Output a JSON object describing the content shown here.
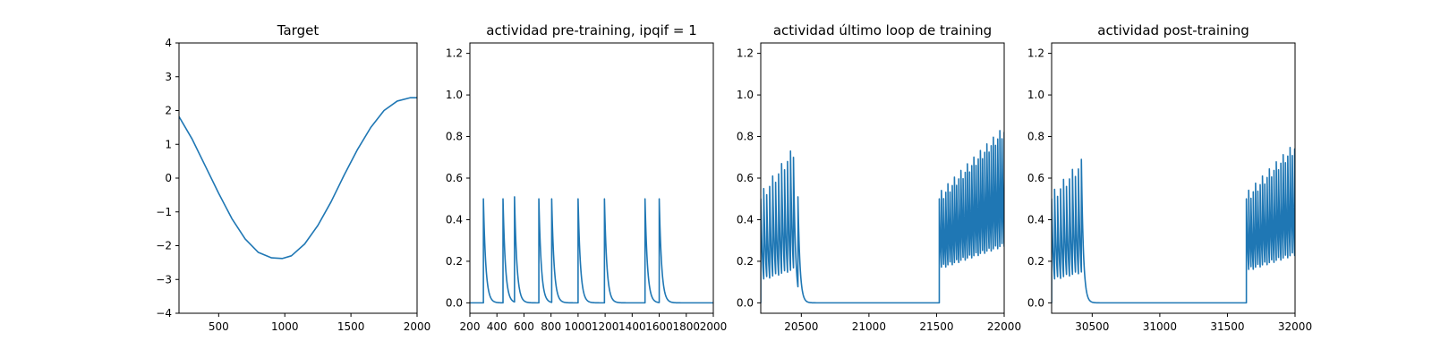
{
  "chart_data": [
    {
      "type": "line",
      "title": "Target",
      "xlim": [
        200,
        2000
      ],
      "ylim": [
        -4,
        4
      ],
      "xticks": [
        500,
        1000,
        1500,
        2000
      ],
      "xtick_labels": [
        "500",
        "1000",
        "1500",
        "2000"
      ],
      "yticks": [
        -4,
        -3,
        -2,
        -1,
        0,
        1,
        2,
        3,
        4
      ],
      "ytick_labels": [
        "−4",
        "−3",
        "−2",
        "−1",
        "0",
        "1",
        "2",
        "3",
        "4"
      ],
      "series": [
        {
          "color": "#1f77b4",
          "x": [
            200,
            300,
            400,
            500,
            600,
            700,
            800,
            900,
            980,
            1050,
            1150,
            1250,
            1350,
            1450,
            1550,
            1650,
            1750,
            1850,
            1950,
            2000
          ],
          "y": [
            1.82,
            1.15,
            0.35,
            -0.45,
            -1.2,
            -1.8,
            -2.2,
            -2.36,
            -2.38,
            -2.3,
            -1.95,
            -1.4,
            -0.7,
            0.1,
            0.85,
            1.5,
            2.0,
            2.28,
            2.38,
            2.38
          ]
        }
      ]
    },
    {
      "type": "line",
      "title": "actividad pre-training, ipqif = 1",
      "xlim": [
        200,
        2000
      ],
      "ylim": [
        -0.05,
        1.25
      ],
      "xticks": [
        200,
        400,
        600,
        800,
        1000,
        1200,
        1400,
        1600,
        1800,
        2000
      ],
      "xtick_labels": [
        "200",
        "400",
        "600",
        "800",
        "1000",
        "1200",
        "1400",
        "1600",
        "1800",
        "2000"
      ],
      "yticks": [
        0.0,
        0.2,
        0.4,
        0.6,
        0.8,
        1.0,
        1.2
      ],
      "ytick_labels": [
        "0.0",
        "0.2",
        "0.4",
        "0.6",
        "0.8",
        "1.0",
        "1.2"
      ],
      "series": [
        {
          "color": "#1f77b4",
          "spikes": [
            {
              "t": 300,
              "peak": 0.5
            },
            {
              "t": 445,
              "peak": 0.5
            },
            {
              "t": 530,
              "peak": 0.51
            },
            {
              "t": 710,
              "peak": 0.5
            },
            {
              "t": 805,
              "peak": 0.5
            },
            {
              "t": 1000,
              "peak": 0.5
            },
            {
              "t": 1195,
              "peak": 0.5
            },
            {
              "t": 1495,
              "peak": 0.5
            },
            {
              "t": 1600,
              "peak": 0.5
            }
          ],
          "decay": 18,
          "baseline": 0.0
        }
      ]
    },
    {
      "type": "line",
      "title": "actividad último loop de training",
      "xlim": [
        20200,
        22000
      ],
      "ylim": [
        -0.05,
        1.25
      ],
      "xticks": [
        20500,
        21000,
        21500,
        22000
      ],
      "xtick_labels": [
        "20500",
        "21000",
        "21500",
        "22000"
      ],
      "yticks": [
        0.0,
        0.2,
        0.4,
        0.6,
        0.8,
        1.0,
        1.2
      ],
      "ytick_labels": [
        "0.0",
        "0.2",
        "0.4",
        "0.6",
        "0.8",
        "1.0",
        "1.2"
      ],
      "series": [
        {
          "color": "#1f77b4",
          "bursts": [
            {
              "start": 20200,
              "end": 20450,
              "period": 22,
              "peak_start": 0.5,
              "peak_end": 0.72,
              "trough_start": 0.15,
              "trough_end": 0.2
            },
            {
              "start": 21520,
              "end": 22000,
              "period": 16,
              "peak_start": 0.5,
              "peak_end": 0.82,
              "trough_start": 0.12,
              "trough_end": 0.3
            }
          ],
          "single_spikes": [
            {
              "t": 20475,
              "peak": 0.51
            }
          ],
          "decay": 15,
          "baseline": 0.0
        }
      ]
    },
    {
      "type": "line",
      "title": "actividad post-training",
      "xlim": [
        30200,
        32000
      ],
      "ylim": [
        -0.05,
        1.25
      ],
      "xticks": [
        30500,
        31000,
        31500,
        32000
      ],
      "xtick_labels": [
        "30500",
        "31000",
        "31500",
        "32000"
      ],
      "yticks": [
        0.0,
        0.2,
        0.4,
        0.6,
        0.8,
        1.0,
        1.2
      ],
      "ytick_labels": [
        "0.0",
        "0.2",
        "0.4",
        "0.6",
        "0.8",
        "1.0",
        "1.2"
      ],
      "series": [
        {
          "color": "#1f77b4",
          "bursts": [
            {
              "start": 30200,
              "end": 30430,
              "period": 22,
              "peak_start": 0.5,
              "peak_end": 0.66,
              "trough_start": 0.2,
              "trough_end": 0.07
            },
            {
              "start": 31640,
              "end": 32000,
              "period": 17,
              "peak_start": 0.5,
              "peak_end": 0.74,
              "trough_start": 0.13,
              "trough_end": 0.26
            }
          ],
          "single_spikes": [],
          "decay": 15,
          "baseline": 0.0
        }
      ]
    }
  ]
}
